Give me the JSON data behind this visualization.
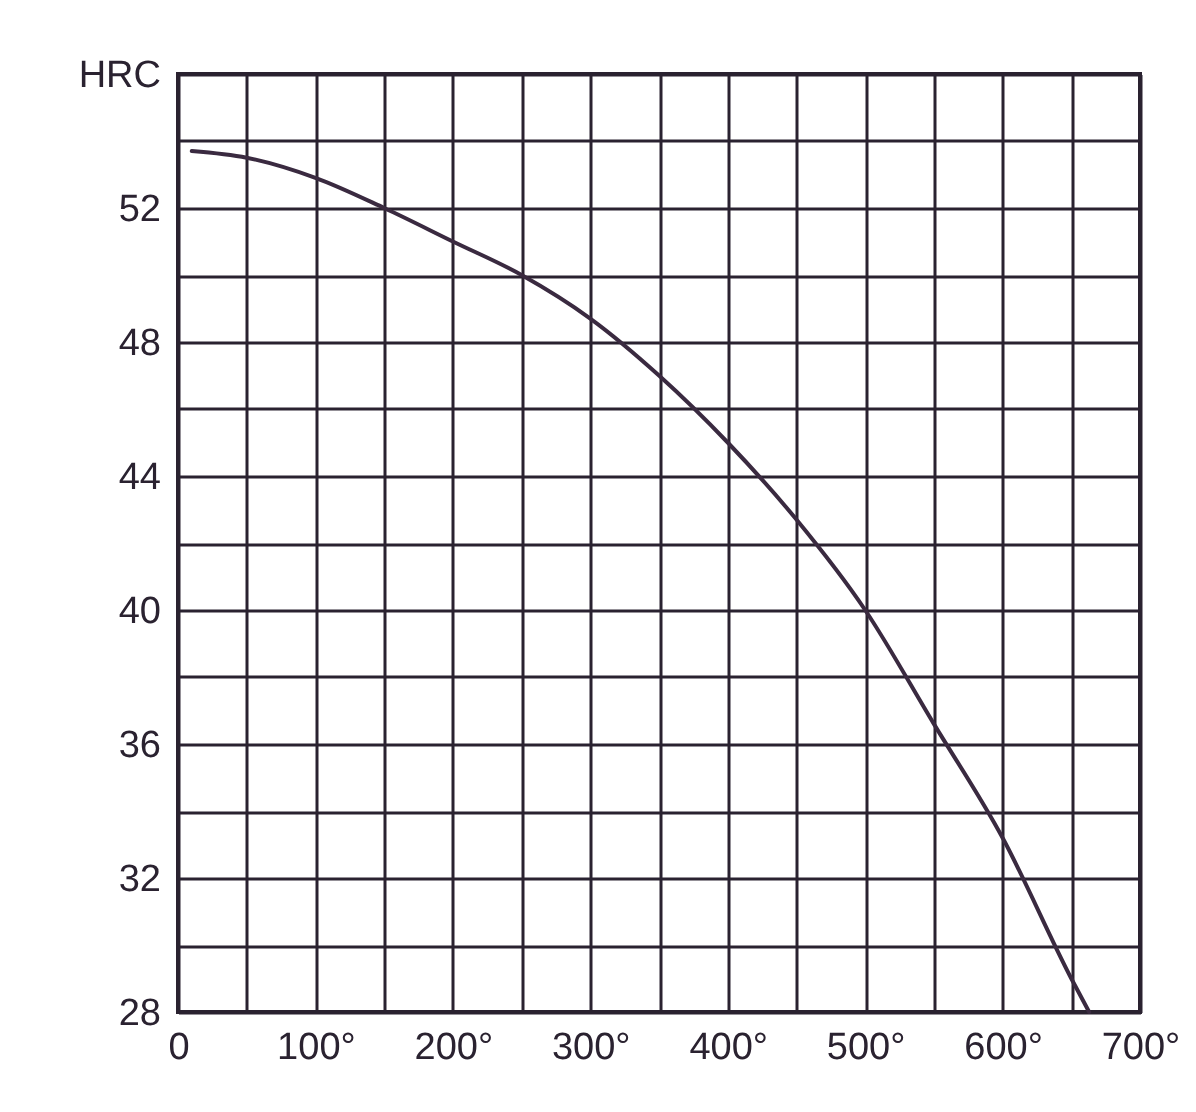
{
  "chart_data": {
    "type": "line",
    "ylabel": "HRC",
    "x": [
      10,
      50,
      100,
      150,
      200,
      250,
      300,
      350,
      400,
      450,
      500,
      550,
      600,
      650,
      663
    ],
    "series": [
      {
        "color": "#3a2a40",
        "values": [
          53.7,
          53.5,
          52.9,
          52,
          51,
          50,
          48.7,
          47,
          45,
          42.7,
          40,
          36.6,
          33.2,
          29,
          28
        ]
      }
    ],
    "xlim": [
      0,
      700
    ],
    "xticks": [
      {
        "value": 0,
        "label": "0"
      },
      {
        "value": 50,
        "label": null
      },
      {
        "value": 100,
        "label": "100°"
      },
      {
        "value": 150,
        "label": null
      },
      {
        "value": 200,
        "label": "200°"
      },
      {
        "value": 250,
        "label": null
      },
      {
        "value": 300,
        "label": "300°"
      },
      {
        "value": 350,
        "label": null
      },
      {
        "value": 400,
        "label": "400°"
      },
      {
        "value": 450,
        "label": null
      },
      {
        "value": 500,
        "label": "500°"
      },
      {
        "value": 550,
        "label": null
      },
      {
        "value": 600,
        "label": "600°"
      },
      {
        "value": 650,
        "label": null
      },
      {
        "value": 700,
        "label": "700°"
      }
    ],
    "ylim": [
      28,
      56
    ],
    "yticks": [
      28,
      {
        "value": 30,
        "label": null
      },
      32,
      {
        "value": 34,
        "label": null
      },
      36,
      {
        "value": 38,
        "label": null
      },
      40,
      {
        "value": 42,
        "label": null
      },
      44,
      {
        "value": 46,
        "label": null
      },
      48,
      {
        "value": 50,
        "label": null
      },
      52,
      {
        "value": 54,
        "label": null
      },
      {
        "value": 56,
        "label": null
      }
    ],
    "grid": true,
    "marker": "none",
    "line_style": "solid"
  }
}
